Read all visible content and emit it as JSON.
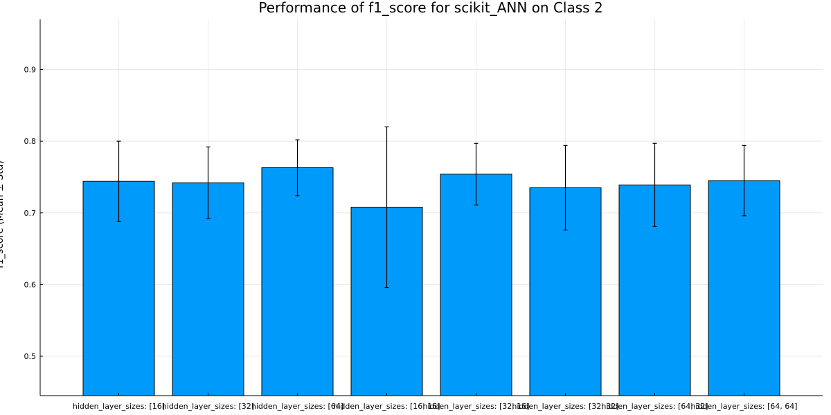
{
  "chart_data": {
    "type": "bar",
    "title": "Performance of f1_score for scikit_ANN on Class 2",
    "xlabel": "",
    "ylabel": "f1_score (Mean ± Std)",
    "categories": [
      "hidden_layer_sizes: [16]",
      "hidden_layer_sizes: [32]",
      "hidden_layer_sizes: [64]",
      "hidden_layer_sizes: [16, 16]",
      "hidden_layer_sizes: [32, 16]",
      "hidden_layer_sizes: [32, 32]",
      "hidden_layer_sizes: [64, 32]",
      "hidden_layer_sizes: [64, 64]"
    ],
    "values": [
      0.744,
      0.742,
      0.763,
      0.708,
      0.754,
      0.735,
      0.739,
      0.745
    ],
    "errors": [
      0.056,
      0.05,
      0.039,
      0.112,
      0.043,
      0.059,
      0.058,
      0.049
    ],
    "ylim": [
      0.445,
      0.97
    ],
    "yticks": [
      0.5,
      0.6,
      0.7,
      0.8,
      0.9
    ],
    "ytick_labels": [
      "0.5",
      "0.6",
      "0.7",
      "0.8",
      "0.9"
    ],
    "grid": true,
    "legend": "none",
    "colors": {
      "bar": "#009AFA",
      "error": "#000000"
    }
  }
}
